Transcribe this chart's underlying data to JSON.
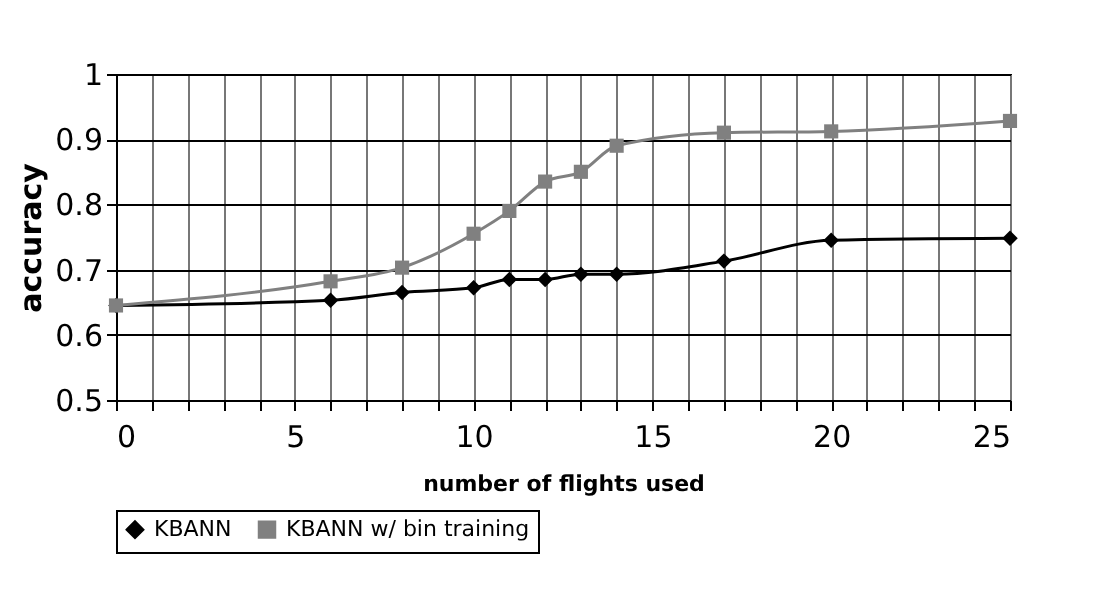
{
  "chart_data": {
    "type": "line",
    "xlabel": "number of flights used",
    "ylabel": "accuracy",
    "x": [
      0,
      6,
      8,
      10,
      11,
      12,
      13,
      14,
      17,
      20,
      25
    ],
    "series": [
      {
        "name": "KBANN",
        "color": "#000000",
        "marker": "diamond",
        "values": [
          0.645,
          0.653,
          0.665,
          0.672,
          0.685,
          0.685,
          0.693,
          0.693,
          0.713,
          0.745,
          0.748
        ]
      },
      {
        "name": "KBANN w/ bin training",
        "color": "#808080",
        "marker": "square",
        "values": [
          0.645,
          0.682,
          0.703,
          0.755,
          0.79,
          0.835,
          0.85,
          0.89,
          0.91,
          0.912,
          0.928
        ]
      }
    ],
    "xlim": [
      0,
      25
    ],
    "xticks": [
      0,
      {
        "value": 1,
        "label": null
      },
      {
        "value": 2,
        "label": null
      },
      {
        "value": 3,
        "label": null
      },
      {
        "value": 4,
        "label": null
      },
      5,
      {
        "value": 6,
        "label": null
      },
      {
        "value": 7,
        "label": null
      },
      {
        "value": 8,
        "label": null
      },
      {
        "value": 9,
        "label": null
      },
      10,
      {
        "value": 11,
        "label": null
      },
      {
        "value": 12,
        "label": null
      },
      {
        "value": 13,
        "label": null
      },
      {
        "value": 14,
        "label": null
      },
      15,
      {
        "value": 16,
        "label": null
      },
      {
        "value": 17,
        "label": null
      },
      {
        "value": 18,
        "label": null
      },
      {
        "value": 19,
        "label": null
      },
      20,
      {
        "value": 21,
        "label": null
      },
      {
        "value": 22,
        "label": null
      },
      {
        "value": 23,
        "label": null
      },
      {
        "value": 24,
        "label": null
      },
      25
    ],
    "ylim": [
      0.5,
      1
    ],
    "yticks": [
      0.5,
      0.6,
      0.7,
      0.8,
      0.9,
      1
    ],
    "grid": true,
    "legend": "bottom",
    "line_style": "solid"
  }
}
